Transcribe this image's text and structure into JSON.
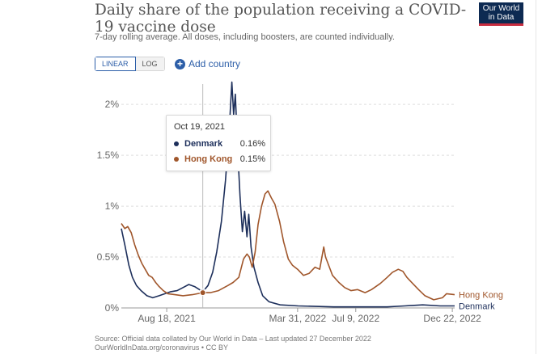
{
  "header": {
    "title": "Daily share of the population receiving a COVID-19 vaccine dose",
    "subtitle": "7-day rolling average. All doses, including boosters, are counted individually.",
    "logo_text_line1": "Our World",
    "logo_text_line2": "in Data"
  },
  "controls": {
    "linear_label": "LINEAR",
    "log_label": "LOG",
    "selected_scale": "linear",
    "add_country_label": "Add country"
  },
  "tooltip": {
    "date": "Oct 19, 2021",
    "rows": [
      {
        "name": "Denmark",
        "value": "0.16%",
        "color": "#1d2f5b"
      },
      {
        "name": "Hong Kong",
        "value": "0.15%",
        "color": "#a0562b"
      }
    ]
  },
  "footer": {
    "source_line1": "Source: Official data collated by Our World in Data – Last updated 27 December 2022",
    "source_line2": "OurWorldInData.org/coronavirus • CC BY"
  },
  "colors": {
    "denmark": "#1d2f5b",
    "hong_kong": "#a0562b",
    "accent": "#2c5ea8",
    "grid": "#dddddd"
  },
  "chart_data": {
    "type": "line",
    "title": "Daily share of the population receiving a COVID-19 vaccine dose",
    "subtitle": "7-day rolling average. All doses, including boosters, are counted individually.",
    "xlabel": "",
    "ylabel": "",
    "x_range": [
      "2021-06-01",
      "2022-12-26"
    ],
    "ylim": [
      0,
      2.2
    ],
    "y_ticks": [
      0,
      0.5,
      1,
      1.5,
      2
    ],
    "y_tick_labels": [
      "0%",
      "0.5%",
      "1%",
      "1.5%",
      "2%"
    ],
    "x_ticks": [
      "2021-08-18",
      "2022-03-31",
      "2022-07-09",
      "2022-12-22"
    ],
    "x_tick_labels": [
      "Aug 18, 2021",
      "Mar 31, 2022",
      "Jul 9, 2022",
      "Dec 22, 2022"
    ],
    "grid": true,
    "legend": "end-labels",
    "hover_date": "2021-10-19",
    "series": [
      {
        "name": "Denmark",
        "color": "#1d2f5b",
        "points": [
          [
            "2021-06-01",
            0.78
          ],
          [
            "2021-06-07",
            0.62
          ],
          [
            "2021-06-14",
            0.42
          ],
          [
            "2021-06-20",
            0.3
          ],
          [
            "2021-06-27",
            0.22
          ],
          [
            "2021-07-05",
            0.17
          ],
          [
            "2021-07-15",
            0.12
          ],
          [
            "2021-07-25",
            0.1
          ],
          [
            "2021-08-05",
            0.12
          ],
          [
            "2021-08-15",
            0.14
          ],
          [
            "2021-08-25",
            0.16
          ],
          [
            "2021-09-05",
            0.17
          ],
          [
            "2021-09-15",
            0.2
          ],
          [
            "2021-09-25",
            0.23
          ],
          [
            "2021-10-05",
            0.21
          ],
          [
            "2021-10-19",
            0.16
          ],
          [
            "2021-10-28",
            0.22
          ],
          [
            "2021-11-05",
            0.35
          ],
          [
            "2021-11-12",
            0.55
          ],
          [
            "2021-11-20",
            0.85
          ],
          [
            "2021-11-27",
            1.25
          ],
          [
            "2021-12-03",
            1.7
          ],
          [
            "2021-12-08",
            2.22
          ],
          [
            "2021-12-11",
            1.9
          ],
          [
            "2021-12-14",
            2.1
          ],
          [
            "2021-12-18",
            1.55
          ],
          [
            "2021-12-22",
            1.1
          ],
          [
            "2021-12-26",
            0.75
          ],
          [
            "2021-12-30",
            0.95
          ],
          [
            "2022-01-03",
            0.7
          ],
          [
            "2022-01-06",
            0.92
          ],
          [
            "2022-01-10",
            0.6
          ],
          [
            "2022-01-15",
            0.4
          ],
          [
            "2022-01-22",
            0.25
          ],
          [
            "2022-01-30",
            0.12
          ],
          [
            "2022-02-10",
            0.06
          ],
          [
            "2022-03-01",
            0.03
          ],
          [
            "2022-04-01",
            0.02
          ],
          [
            "2022-06-01",
            0.01
          ],
          [
            "2022-09-01",
            0.01
          ],
          [
            "2022-10-01",
            0.02
          ],
          [
            "2022-11-01",
            0.03
          ],
          [
            "2022-12-01",
            0.02
          ],
          [
            "2022-12-26",
            0.02
          ]
        ]
      },
      {
        "name": "Hong Kong",
        "color": "#a0562b",
        "points": [
          [
            "2021-06-01",
            0.83
          ],
          [
            "2021-06-07",
            0.78
          ],
          [
            "2021-06-12",
            0.8
          ],
          [
            "2021-06-18",
            0.74
          ],
          [
            "2021-06-24",
            0.62
          ],
          [
            "2021-06-30",
            0.52
          ],
          [
            "2021-07-06",
            0.44
          ],
          [
            "2021-07-12",
            0.38
          ],
          [
            "2021-07-18",
            0.32
          ],
          [
            "2021-07-24",
            0.3
          ],
          [
            "2021-07-30",
            0.25
          ],
          [
            "2021-08-05",
            0.21
          ],
          [
            "2021-08-12",
            0.17
          ],
          [
            "2021-08-20",
            0.14
          ],
          [
            "2021-09-01",
            0.13
          ],
          [
            "2021-09-15",
            0.12
          ],
          [
            "2021-10-01",
            0.13
          ],
          [
            "2021-10-19",
            0.15
          ],
          [
            "2021-11-01",
            0.15
          ],
          [
            "2021-11-15",
            0.17
          ],
          [
            "2021-12-01",
            0.22
          ],
          [
            "2021-12-10",
            0.25
          ],
          [
            "2021-12-20",
            0.3
          ],
          [
            "2021-12-28",
            0.48
          ],
          [
            "2022-01-03",
            0.53
          ],
          [
            "2022-01-07",
            0.5
          ],
          [
            "2022-01-12",
            0.4
          ],
          [
            "2022-01-17",
            0.55
          ],
          [
            "2022-01-22",
            0.82
          ],
          [
            "2022-01-28",
            1.0
          ],
          [
            "2022-02-03",
            1.12
          ],
          [
            "2022-02-08",
            1.15
          ],
          [
            "2022-02-14",
            1.08
          ],
          [
            "2022-02-20",
            1.02
          ],
          [
            "2022-02-28",
            0.85
          ],
          [
            "2022-03-07",
            0.65
          ],
          [
            "2022-03-15",
            0.48
          ],
          [
            "2022-03-22",
            0.42
          ],
          [
            "2022-03-31",
            0.38
          ],
          [
            "2022-04-10",
            0.32
          ],
          [
            "2022-04-20",
            0.34
          ],
          [
            "2022-04-30",
            0.4
          ],
          [
            "2022-05-08",
            0.38
          ],
          [
            "2022-05-15",
            0.6
          ],
          [
            "2022-05-18",
            0.5
          ],
          [
            "2022-05-22",
            0.44
          ],
          [
            "2022-05-30",
            0.32
          ],
          [
            "2022-06-10",
            0.25
          ],
          [
            "2022-06-20",
            0.2
          ],
          [
            "2022-07-01",
            0.17
          ],
          [
            "2022-07-12",
            0.18
          ],
          [
            "2022-07-25",
            0.15
          ],
          [
            "2022-08-05",
            0.18
          ],
          [
            "2022-08-20",
            0.24
          ],
          [
            "2022-09-01",
            0.3
          ],
          [
            "2022-09-10",
            0.35
          ],
          [
            "2022-09-20",
            0.38
          ],
          [
            "2022-09-28",
            0.36
          ],
          [
            "2022-10-05",
            0.3
          ],
          [
            "2022-10-15",
            0.24
          ],
          [
            "2022-10-25",
            0.18
          ],
          [
            "2022-11-05",
            0.12
          ],
          [
            "2022-11-20",
            0.08
          ],
          [
            "2022-12-05",
            0.1
          ],
          [
            "2022-12-12",
            0.14
          ],
          [
            "2022-12-26",
            0.13
          ]
        ]
      }
    ]
  }
}
